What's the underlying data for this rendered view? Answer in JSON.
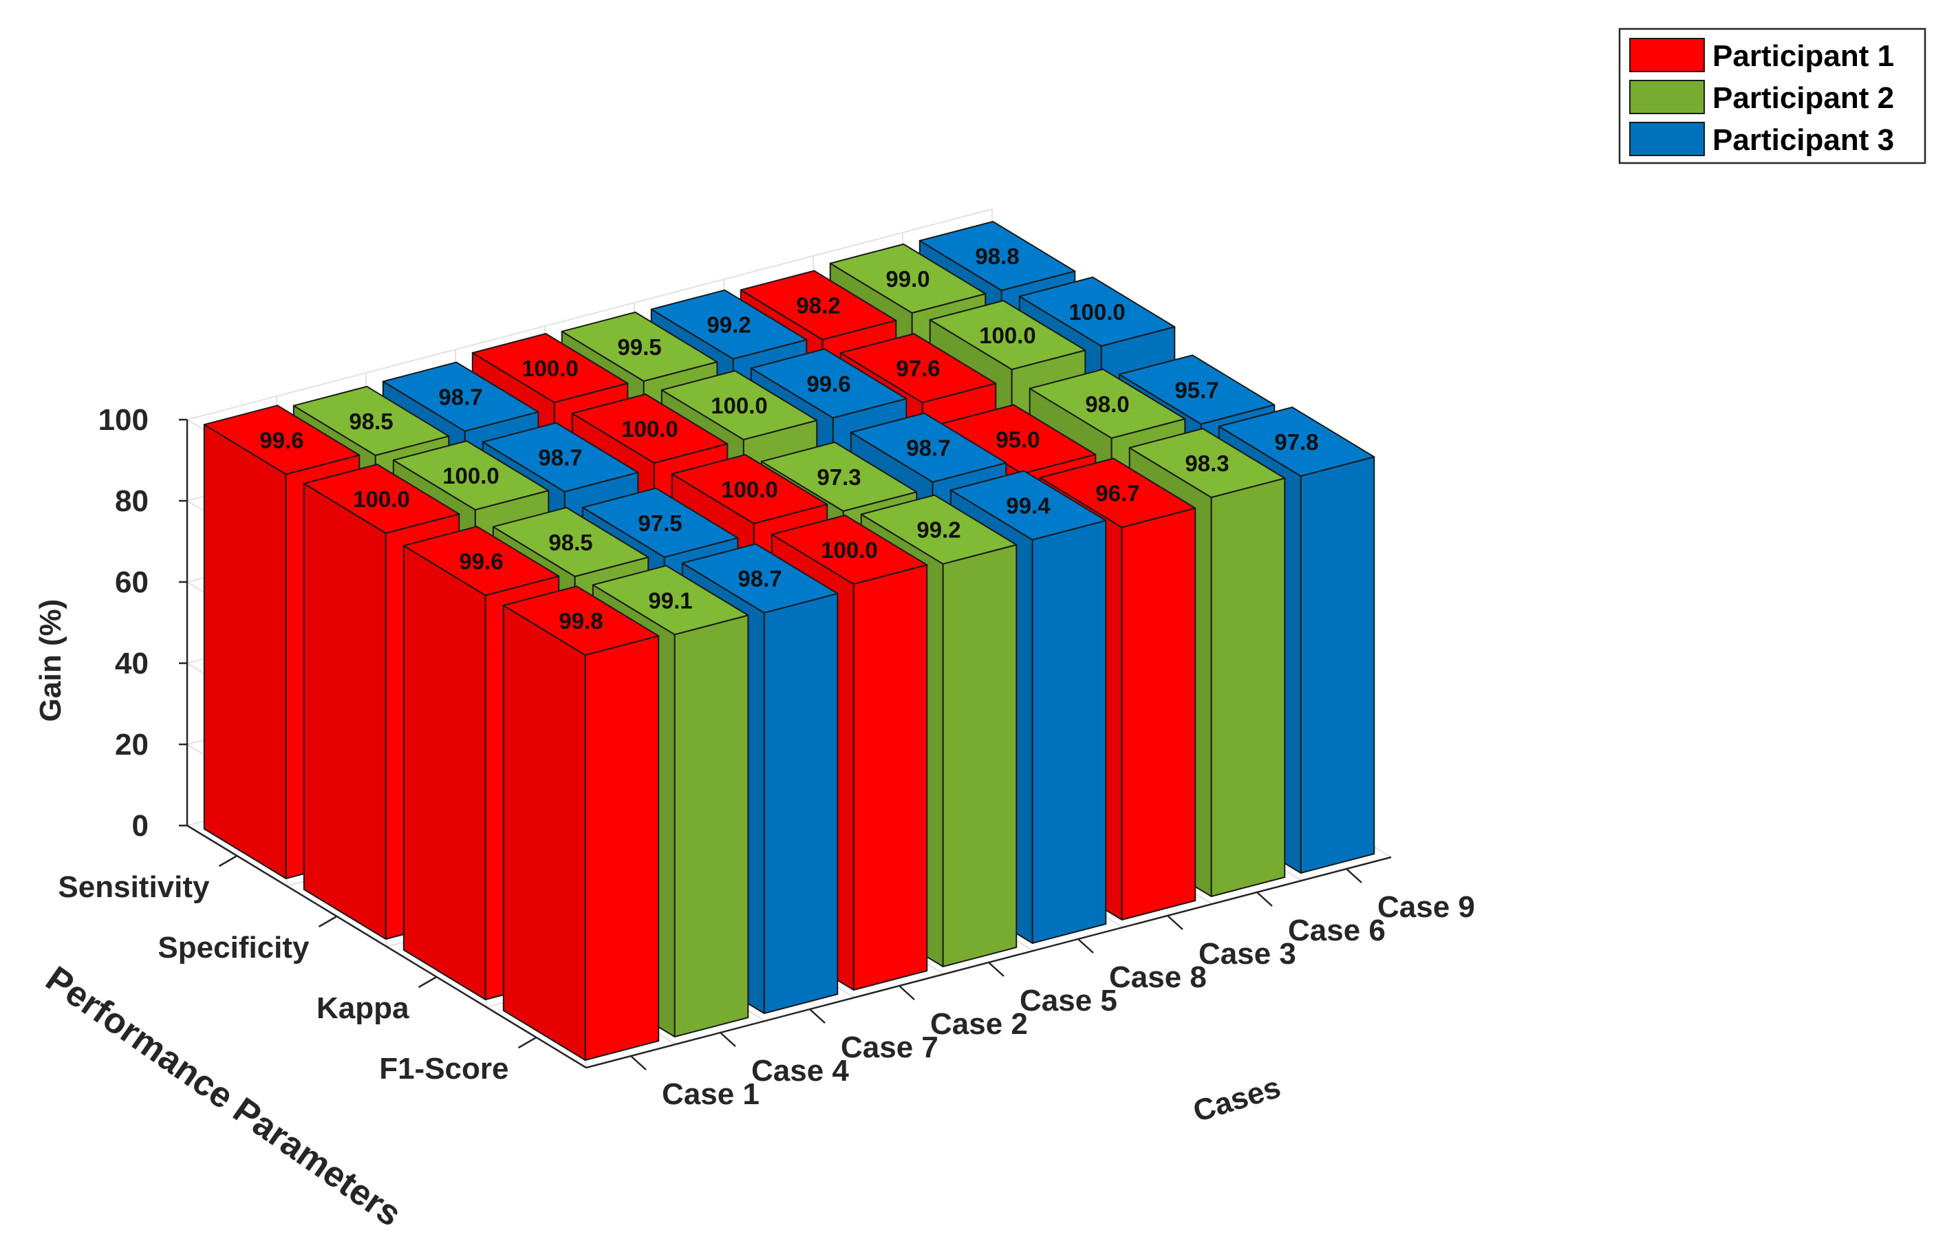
{
  "chart_data": {
    "type": "bar",
    "subtype": "3d-grouped-bar",
    "zlabel": "Gain (%)",
    "xlabel": "Cases",
    "ylabel": "Performance Parameters",
    "zlim": [
      0,
      100
    ],
    "z_ticks": [
      "0",
      "20",
      "40",
      "60",
      "80",
      "100"
    ],
    "grid": true,
    "legend_position": "top-right",
    "categories": [
      "Case 1",
      "Case 4",
      "Case 7",
      "Case 2",
      "Case 5",
      "Case 8",
      "Case 3",
      "Case 6",
      "Case 9"
    ],
    "parameters": [
      "Sensitivity",
      "Specificity",
      "Kappa",
      "F1-Score"
    ],
    "series": [
      {
        "name": "Participant 1",
        "color": "#ff0000",
        "columns": [
          0,
          3,
          6
        ]
      },
      {
        "name": "Participant 2",
        "color": "#77ac30",
        "columns": [
          1,
          4,
          7
        ]
      },
      {
        "name": "Participant 3",
        "color": "#0072bd",
        "columns": [
          2,
          5,
          8
        ]
      }
    ],
    "values": [
      [
        99.6,
        98.5,
        98.7,
        100.0,
        99.5,
        99.2,
        98.2,
        99.0,
        98.8
      ],
      [
        100.0,
        100.0,
        98.7,
        100.0,
        100.0,
        99.6,
        97.6,
        100.0,
        100.0
      ],
      [
        99.6,
        98.5,
        97.5,
        100.0,
        97.3,
        98.7,
        95.0,
        98.0,
        95.7
      ],
      [
        99.8,
        99.1,
        98.7,
        100.0,
        99.2,
        99.4,
        96.7,
        98.3,
        97.8
      ]
    ]
  }
}
